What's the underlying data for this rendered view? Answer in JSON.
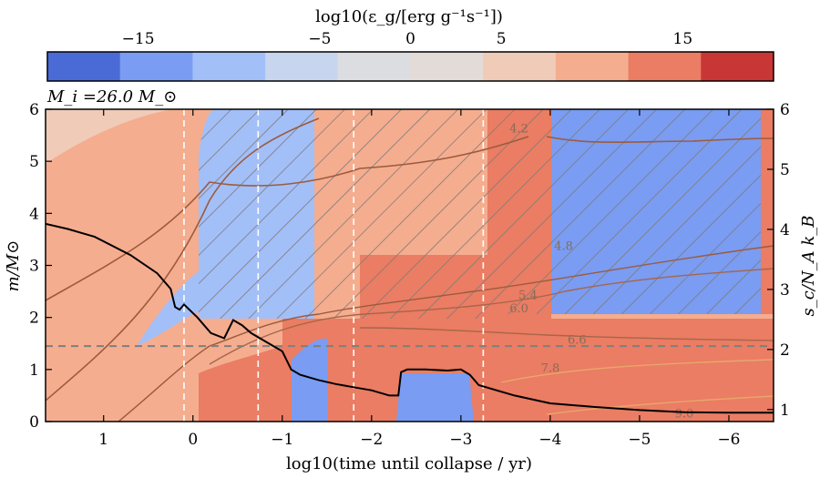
{
  "chart_data": {
    "type": "heatmap",
    "title": "",
    "annotation": "M_i =26.0 M_⊙",
    "xlabel": "log10(time until collapse / yr)",
    "ylabel_left": "m/M⊙",
    "ylabel_right": "s_c/N_A k_B",
    "colorbar": {
      "label": "log10(ε_g/[erg g⁻¹s⁻¹])",
      "range": [
        -20,
        20
      ],
      "bins": [
        -20,
        -16,
        -12,
        -8,
        -4,
        0,
        4,
        8,
        12,
        16,
        20
      ],
      "colors": [
        "#4a6bd6",
        "#7a9cf2",
        "#a3bff8",
        "#c8d5ee",
        "#dcdde1",
        "#e3dbd8",
        "#efcbb8",
        "#f5ad8f",
        "#ea7d63",
        "#c83735"
      ],
      "ticks": [
        -15,
        -5,
        0,
        5,
        15
      ],
      "tick_labels": [
        "−15",
        "−5",
        "0",
        "5",
        "15"
      ]
    },
    "xaxis": {
      "range": [
        1.65,
        -6.5
      ],
      "inverted": true,
      "ticks": [
        1,
        0,
        -1,
        -2,
        -3,
        -4,
        -5,
        -6
      ],
      "tick_labels": [
        "1",
        "0",
        "−1",
        "−2",
        "−3",
        "−4",
        "−5",
        "−6"
      ]
    },
    "yaxis_left": {
      "range": [
        0,
        6
      ],
      "ticks": [
        0,
        1,
        2,
        3,
        4,
        5,
        6
      ],
      "tick_labels": [
        "0",
        "1",
        "2",
        "3",
        "4",
        "5",
        "6"
      ]
    },
    "yaxis_right": {
      "range": [
        0.8,
        6
      ],
      "ticks": [
        1,
        2,
        3,
        4,
        5,
        6
      ],
      "tick_labels": [
        "1",
        "2",
        "3",
        "4",
        "5",
        "6"
      ]
    },
    "vertical_dashed_lines_x": [
      0.1,
      -0.73,
      -1.8,
      -3.25
    ],
    "horizontal_dashed_line_y": 1.45,
    "contour_labels": [
      {
        "text": "4.2",
        "x": -3.65,
        "y": 5.55
      },
      {
        "text": "4.8",
        "x": -4.15,
        "y": 3.3
      },
      {
        "text": "5.4",
        "x": -3.75,
        "y": 2.35
      },
      {
        "text": "6.0",
        "x": -3.65,
        "y": 2.1
      },
      {
        "text": "6.6",
        "x": -4.3,
        "y": 1.5
      },
      {
        "text": "7.8",
        "x": -4.0,
        "y": 0.95
      },
      {
        "text": "9.0",
        "x": -5.5,
        "y": 0.08
      }
    ],
    "series": [
      {
        "name": "",
        "x": [
          1.65,
          1.4,
          1.1,
          0.7,
          0.4,
          0.25,
          0.2,
          0.15,
          0.1,
          -0.05,
          -0.2,
          -0.35,
          -0.45,
          -0.55,
          -0.65,
          -0.8,
          -1.0,
          -1.1,
          -1.2,
          -1.4,
          -1.6,
          -1.8,
          -2.0,
          -2.2,
          -2.3,
          -2.33,
          -2.4,
          -2.6,
          -2.85,
          -3.0,
          -3.1,
          -3.2,
          -3.6,
          -4.0,
          -4.5,
          -5.0,
          -5.5,
          -6.0,
          -6.5
        ],
        "y": [
          3.8,
          3.7,
          3.55,
          3.2,
          2.85,
          2.55,
          2.2,
          2.15,
          2.25,
          2.0,
          1.7,
          1.6,
          1.95,
          1.85,
          1.7,
          1.55,
          1.35,
          1.0,
          0.9,
          0.8,
          0.72,
          0.66,
          0.6,
          0.5,
          0.5,
          0.95,
          1.0,
          1.0,
          0.98,
          1.0,
          0.9,
          0.7,
          0.5,
          0.35,
          0.28,
          0.22,
          0.18,
          0.17,
          0.17
        ]
      }
    ]
  }
}
